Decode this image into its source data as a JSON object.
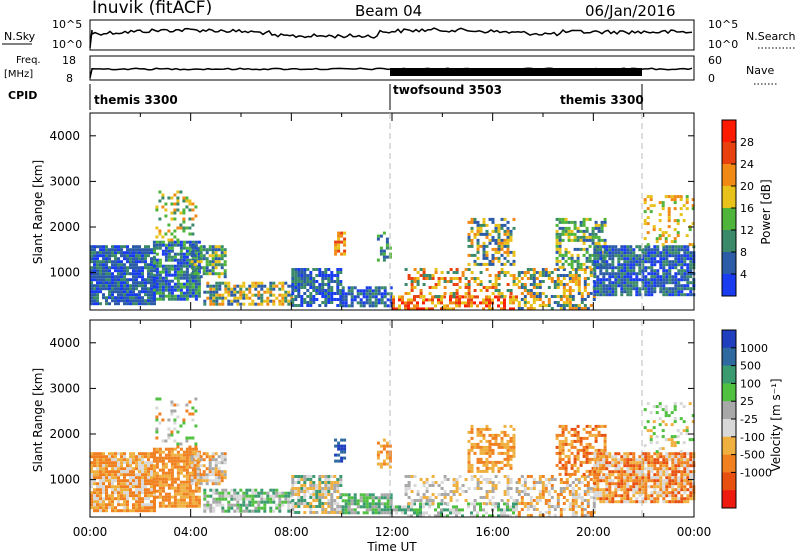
{
  "header": {
    "station": "Inuvik (fitACF)",
    "beam": "Beam 04",
    "date": "06/Jan/2016"
  },
  "top_panels": {
    "nsky_label": "N.Sky",
    "nsearch_label": "N.Search",
    "nsky_ticks": [
      "10^5",
      "10^0"
    ],
    "nsearch_ticks": [
      "10^5",
      "10^0"
    ],
    "freq_label": "Freq.",
    "freq_unit": "[MHz]",
    "freq_ticks": [
      "18",
      "8"
    ],
    "nave_label": "Nave",
    "nave_ticks": [
      "60",
      "0"
    ],
    "cpid_label": "CPID",
    "cpid_segments": [
      {
        "name": "themis 3300",
        "start_hour": 0,
        "end_hour": 12
      },
      {
        "name": "twofsound 3503",
        "start_hour": 12,
        "end_hour": 22
      },
      {
        "name": "themis 3300",
        "start_hour": 22,
        "end_hour": 24
      }
    ]
  },
  "chart_data": [
    {
      "type": "heatmap",
      "title": "",
      "xlabel": "",
      "ylabel": "Slant Range [km]",
      "x_range_hours": [
        0,
        24
      ],
      "ylim": [
        180,
        4500
      ],
      "y_ticks": [
        1000,
        2000,
        3000,
        4000
      ],
      "colorbar_label": "Power [dB]",
      "colorbar_ticks": [
        "4",
        "8",
        "12",
        "16",
        "20",
        "24",
        "28"
      ],
      "colorbar_colors": [
        "#1a3cf0",
        "#2c5ca8",
        "#3a8a6a",
        "#4fb53a",
        "#e8c21a",
        "#f08a14",
        "#e8400e",
        "#ff1a00"
      ],
      "dashed_lines_hours": [
        12,
        22
      ]
    },
    {
      "type": "heatmap",
      "title": "",
      "xlabel": "Time UT",
      "ylabel": "Slant Range [km]",
      "x_range_hours": [
        0,
        24
      ],
      "ylim": [
        180,
        4500
      ],
      "y_ticks": [
        1000,
        2000,
        3000,
        4000
      ],
      "x_ticks": [
        "00:00",
        "04:00",
        "08:00",
        "12:00",
        "16:00",
        "20:00",
        "00:00"
      ],
      "colorbar_label": "Velocity [m s⁻¹]",
      "colorbar_ticks": [
        "1000",
        "500",
        "100",
        "25",
        "-25",
        "-100",
        "-500",
        "-1000"
      ],
      "colorbar_colors": [
        "#1f3fbf",
        "#2e6aa0",
        "#3a9a70",
        "#4fc040",
        "#a8a8a8",
        "#d8d8d8",
        "#f0b040",
        "#f08020",
        "#e85010",
        "#ee1a10"
      ],
      "dashed_lines_hours": [
        12,
        22
      ]
    }
  ]
}
